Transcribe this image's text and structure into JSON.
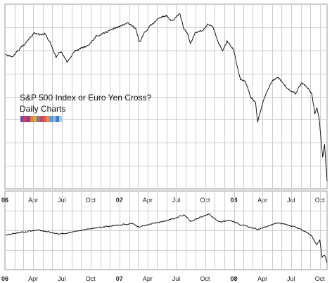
{
  "chart_data": [
    {
      "type": "line",
      "title_lines": [
        "S&P 500 Index or Euro Yen Cross?",
        "Daily Charts"
      ],
      "grid": true,
      "x_range": [
        "2006-01-01",
        "2008-10-24"
      ],
      "x_tick_labels": [
        {
          "date": "2006-01-01",
          "label": "06",
          "bold": true
        },
        {
          "date": "2006-04-01",
          "label": "Apr"
        },
        {
          "date": "2006-07-01",
          "label": "Jul"
        },
        {
          "date": "2006-10-01",
          "label": "Oct"
        },
        {
          "date": "2007-01-01",
          "label": "07",
          "bold": true
        },
        {
          "date": "2007-04-01",
          "label": "Apr"
        },
        {
          "date": "2007-07-01",
          "label": "Jul"
        },
        {
          "date": "2007-10-01",
          "label": "Oct"
        },
        {
          "date": "2008-01-01",
          "label": "08",
          "bold": true
        },
        {
          "date": "2008-04-01",
          "label": "Apr"
        },
        {
          "date": "2008-07-01",
          "label": "Jul"
        },
        {
          "date": "2008-10-01",
          "label": "Oct"
        }
      ],
      "y_range": [
        0,
        100
      ],
      "y_grid_count": 7,
      "legend_swatch_colors": [
        "#6e4fa2",
        "#c93b6b",
        "#8a3a7a",
        "#e07a3a",
        "#d6a84a",
        "#7e7e7e",
        "#b84a6a",
        "#e2504a",
        "#f08a4a",
        "#5a9ad6",
        "#7ab8e6",
        "#4a7ac6",
        "#9ad0f0"
      ],
      "series": [
        {
          "x": [
            "2006-01-03",
            "2006-01-25",
            "2006-02-20",
            "2006-03-15",
            "2006-04-05",
            "2006-04-25",
            "2006-05-08",
            "2006-05-25",
            "2006-06-13",
            "2006-06-30",
            "2006-07-18",
            "2006-08-10",
            "2006-09-01",
            "2006-09-25",
            "2006-10-16",
            "2006-11-10",
            "2006-12-05",
            "2007-01-05",
            "2007-01-25",
            "2007-02-22",
            "2007-03-05",
            "2007-03-25",
            "2007-04-15",
            "2007-05-05",
            "2007-05-30",
            "2007-06-15",
            "2007-06-27",
            "2007-07-13",
            "2007-07-25",
            "2007-08-05",
            "2007-08-15",
            "2007-08-30",
            "2007-09-20",
            "2007-10-09",
            "2007-10-25",
            "2007-11-15",
            "2007-11-26",
            "2007-12-10",
            "2007-12-31",
            "2008-01-10",
            "2008-01-22",
            "2008-02-05",
            "2008-02-25",
            "2008-03-10",
            "2008-03-17",
            "2008-04-05",
            "2008-05-02",
            "2008-05-19",
            "2008-06-10",
            "2008-06-25",
            "2008-07-15",
            "2008-08-05",
            "2008-08-25",
            "2008-09-05",
            "2008-09-15",
            "2008-09-22",
            "2008-09-29",
            "2008-10-10",
            "2008-10-16",
            "2008-10-24"
          ],
          "y": [
            74,
            73,
            78,
            82,
            86,
            85,
            86,
            81,
            73,
            76,
            70,
            76,
            78,
            79,
            84,
            86,
            88,
            90,
            92,
            89,
            81,
            87,
            91,
            94,
            96,
            93,
            94,
            97,
            89,
            86,
            80,
            86,
            87,
            91,
            90,
            80,
            76,
            82,
            77,
            69,
            61,
            60,
            51,
            48,
            38,
            50,
            60,
            62,
            58,
            55,
            53,
            59,
            56,
            53,
            42,
            45,
            39,
            18,
            25,
            5
          ]
        }
      ]
    },
    {
      "type": "line",
      "grid": true,
      "x_range": [
        "2006-01-01",
        "2008-10-24"
      ],
      "x_tick_labels": [
        {
          "date": "2006-01-01",
          "label": "06",
          "bold": true
        },
        {
          "date": "2006-04-01",
          "label": "Apr"
        },
        {
          "date": "2006-07-01",
          "label": "Jul"
        },
        {
          "date": "2006-10-01",
          "label": "Oct"
        },
        {
          "date": "2007-01-01",
          "label": "07",
          "bold": true
        },
        {
          "date": "2007-04-01",
          "label": "Apr"
        },
        {
          "date": "2007-07-01",
          "label": "Jul"
        },
        {
          "date": "2007-10-01",
          "label": "Oct"
        },
        {
          "date": "2008-01-01",
          "label": "08",
          "bold": true
        },
        {
          "date": "2008-04-01",
          "label": "Apr"
        },
        {
          "date": "2008-07-01",
          "label": "Jul"
        },
        {
          "date": "2008-10-01",
          "label": "Oct"
        }
      ],
      "y_range": [
        0,
        100
      ],
      "y_grid_count": 3,
      "series": [
        {
          "x": [
            "2006-01-03",
            "2006-02-20",
            "2006-04-15",
            "2006-05-20",
            "2006-06-20",
            "2006-08-15",
            "2006-10-15",
            "2006-12-15",
            "2007-02-10",
            "2007-03-05",
            "2007-04-15",
            "2007-06-05",
            "2007-07-10",
            "2007-07-27",
            "2007-08-16",
            "2007-09-15",
            "2007-10-15",
            "2007-11-05",
            "2007-11-20",
            "2007-12-20",
            "2008-01-22",
            "2008-02-15",
            "2008-03-17",
            "2008-04-20",
            "2008-05-20",
            "2008-06-20",
            "2008-07-15",
            "2008-08-10",
            "2008-09-05",
            "2008-09-20",
            "2008-10-01",
            "2008-10-08",
            "2008-10-16",
            "2008-10-24"
          ],
          "y": [
            56,
            60,
            64,
            61,
            57,
            62,
            67,
            71,
            74,
            68,
            74,
            79,
            85,
            88,
            77,
            84,
            89,
            80,
            76,
            80,
            72,
            69,
            65,
            70,
            75,
            72,
            68,
            63,
            55,
            40,
            48,
            20,
            25,
            12
          ]
        }
      ]
    }
  ]
}
